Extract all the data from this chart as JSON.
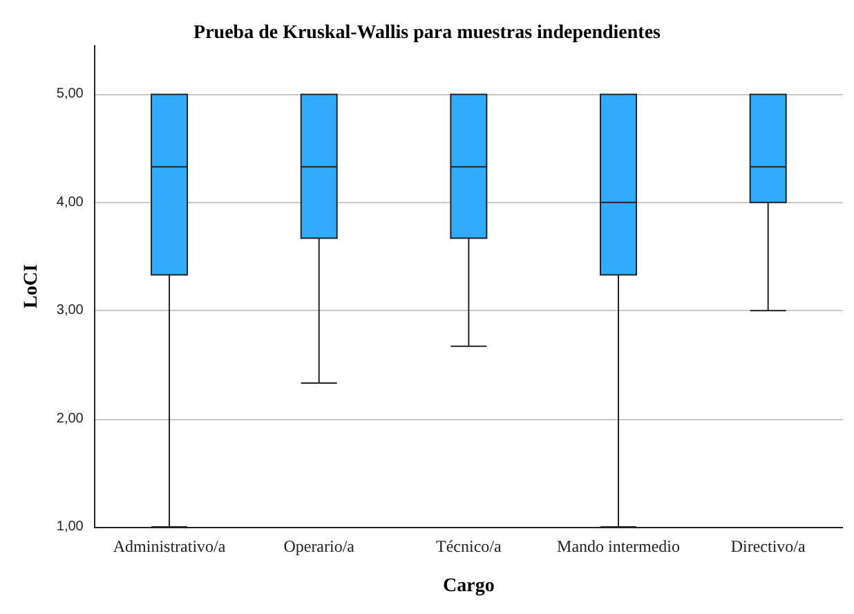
{
  "chart_data": {
    "type": "box",
    "title": "Prueba de Kruskal-Wallis para muestras independientes",
    "xlabel": "Cargo",
    "ylabel": "LoCI",
    "categories": [
      "Administrativo/a",
      "Operario/a",
      "Técnico/a",
      "Mando intermedio",
      "Directivo/a"
    ],
    "color": "#31acfd",
    "boxes": [
      {
        "low": 1,
        "q1": 3.33,
        "median": 4.33,
        "q3": 5,
        "high": 5
      },
      {
        "low": 2.33,
        "q1": 3.67,
        "median": 4.33,
        "q3": 5,
        "high": 5
      },
      {
        "low": 2.67,
        "q1": 3.67,
        "median": 4.33,
        "q3": 5,
        "high": 5
      },
      {
        "low": 1,
        "q1": 3.33,
        "median": 4,
        "q3": 5,
        "high": 5
      },
      {
        "low": 3,
        "q1": 4,
        "median": 4.33,
        "q3": 5,
        "high": 5
      }
    ],
    "ylim": [
      1,
      5.45
    ],
    "yticks": [
      {
        "value": 1,
        "label": "1,00"
      },
      {
        "value": 2,
        "label": "2,00"
      },
      {
        "value": 3,
        "label": "3,00"
      },
      {
        "value": 4,
        "label": "4,00"
      },
      {
        "value": 5,
        "label": "5,00"
      }
    ],
    "grid": "y"
  }
}
